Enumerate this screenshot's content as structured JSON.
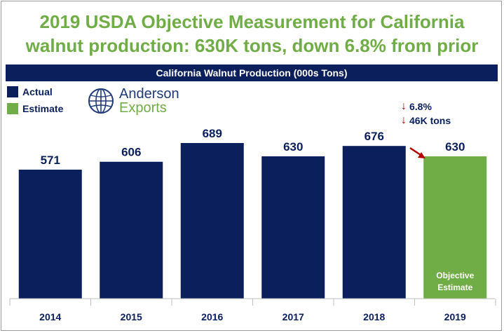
{
  "header": {
    "title_line1": "2019 USDA Objective Measurement for California",
    "title_line2": "walnut production: 630K tons, down 6.8% from prior"
  },
  "logo": {
    "line1": "Anderson",
    "line2": "Exports",
    "icon": "globe-icon"
  },
  "annotations": {
    "pct_change": "6.8%",
    "tons_change": "46K tons",
    "arrow_icon": "down-arrow-icon"
  },
  "chart_data": {
    "type": "bar",
    "title": "California Walnut Production (000s Tons)",
    "categories": [
      "2014",
      "2015",
      "2016",
      "2017",
      "2018",
      "2019"
    ],
    "values": [
      571,
      606,
      689,
      630,
      676,
      630
    ],
    "bar_kind": [
      "Actual",
      "Actual",
      "Actual",
      "Actual",
      "Actual",
      "Estimate"
    ],
    "legend": [
      {
        "label": "Actual",
        "color": "#0a1f5c"
      },
      {
        "label": "Estimate",
        "color": "#70ad47"
      }
    ],
    "legend_position": "top-left",
    "inner_label_2019": [
      "Objective",
      "Estimate"
    ],
    "ylim": [
      0,
      700
    ],
    "grid": false,
    "colors": {
      "actual": "#0a1f5c",
      "estimate": "#70ad47",
      "arrow": "#b00000"
    }
  }
}
